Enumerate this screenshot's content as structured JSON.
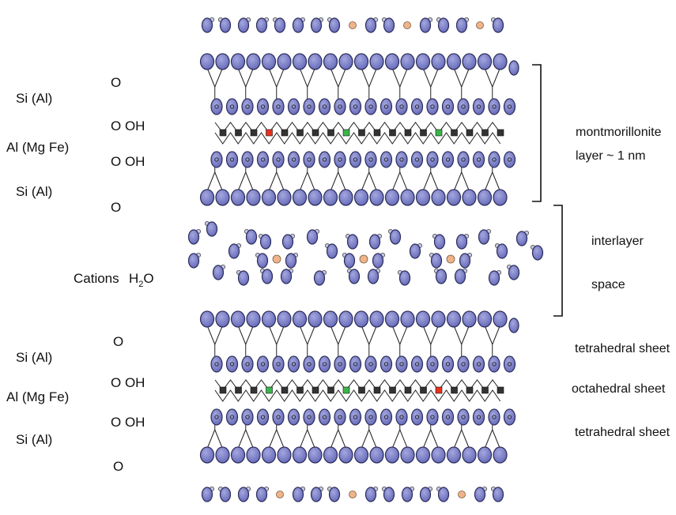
{
  "diagram": {
    "left_labels": {
      "top_block": {
        "si_top": "Si (Al)",
        "al_mid": "Al (Mg Fe)",
        "si_bot": "Si (Al)",
        "o_1": "O",
        "o_oh_1": "O OH",
        "o_oh_2": "O OH",
        "o_2": "O"
      },
      "interlayer": {
        "cations": "Cations",
        "water_h": "H",
        "water_sub": "2",
        "water_o": "O"
      },
      "bottom_block": {
        "si_top": "Si (Al)",
        "al_mid": "Al (Mg Fe)",
        "si_bot": "Si (Al)",
        "o_1": "O",
        "o_oh_1": "O OH",
        "o_oh_2": "O OH",
        "o_2": "O"
      }
    },
    "right_labels": {
      "montmorillonite": "montmorillonite",
      "layer_thickness": "layer ~ 1 nm",
      "interlayer": "interlayer",
      "space": "space",
      "tetrahedral_1": "tetrahedral sheet",
      "octahedral": "octahedral sheet",
      "tetrahedral_2": "tetrahedral sheet"
    },
    "colors": {
      "oxygen": "#7b7fc6",
      "oxygen_outline": "#2b2d5a",
      "cation": "#f0b48a",
      "octahedral_atom": "#333333",
      "substitution_mg": "#3ab54a",
      "substitution_fe": "#e8321e",
      "bond": "#222222"
    }
  }
}
